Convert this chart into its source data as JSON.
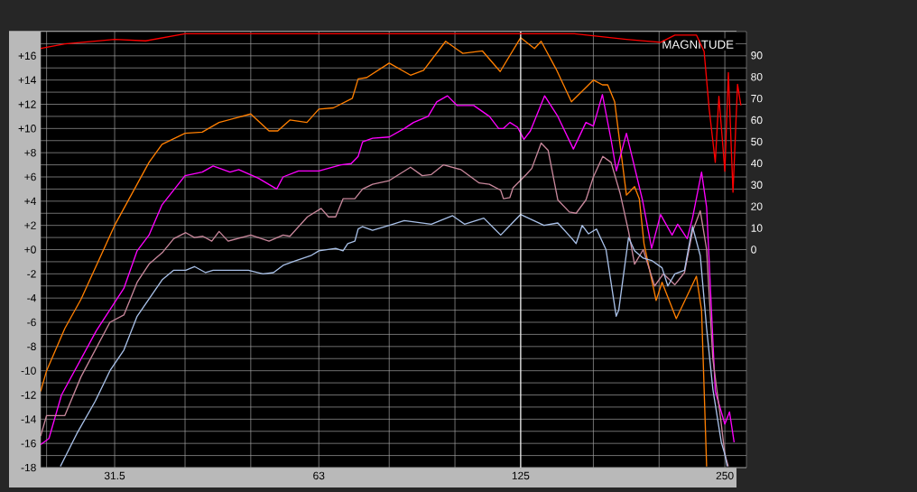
{
  "chart_data": {
    "type": "line",
    "log": "x",
    "grid": true,
    "annotations": [
      "MAGNITUDE"
    ],
    "xlim": [
      24.5,
      269
    ],
    "ylim": [
      -18,
      18
    ],
    "y2lim": [
      -101,
      101
    ],
    "xticks": [
      {
        "value": 25,
        "label": null
      },
      31.5,
      {
        "value": 40,
        "label": null
      },
      {
        "value": 50,
        "label": null
      },
      63,
      {
        "value": 80,
        "label": null
      },
      {
        "value": 100,
        "label": null
      },
      125,
      {
        "value": 160,
        "label": null
      },
      {
        "value": 200,
        "label": null
      },
      250
    ],
    "yticks": [
      -18,
      {
        "value": -17,
        "label": null
      },
      -16,
      {
        "value": -15,
        "label": null
      },
      -14,
      {
        "value": -13,
        "label": null
      },
      -12,
      {
        "value": -11,
        "label": null
      },
      -10,
      {
        "value": -9,
        "label": null
      },
      -8,
      {
        "value": -7,
        "label": null
      },
      -6,
      {
        "value": -5,
        "label": null
      },
      -4,
      {
        "value": -3,
        "label": null
      },
      -2,
      {
        "value": -1,
        "label": null
      },
      {
        "value": 0,
        "label": "+0"
      },
      {
        "value": 1,
        "label": null
      },
      {
        "value": 2,
        "label": "+2"
      },
      {
        "value": 3,
        "label": null
      },
      {
        "value": 4,
        "label": "+4"
      },
      {
        "value": 5,
        "label": null
      },
      {
        "value": 6,
        "label": "+6"
      },
      {
        "value": 7,
        "label": null
      },
      {
        "value": 8,
        "label": "+8"
      },
      {
        "value": 9,
        "label": null
      },
      {
        "value": 10,
        "label": "+10"
      },
      {
        "value": 11,
        "label": null
      },
      {
        "value": 12,
        "label": "+12"
      },
      {
        "value": 13,
        "label": null
      },
      {
        "value": 14,
        "label": "+14"
      },
      {
        "value": 15,
        "label": null
      },
      {
        "value": 16,
        "label": "+16"
      },
      {
        "value": 17,
        "label": null
      }
    ],
    "y2ticks": [
      0,
      10,
      20,
      30,
      40,
      50,
      60,
      70,
      80,
      90
    ],
    "ref_lines": [
      {
        "axis": "x",
        "value": 125,
        "color": "#ffffff"
      }
    ],
    "series": [
      {
        "color": "#ff7f00",
        "x": [
          24.5,
          25,
          26.6,
          28.1,
          31.5,
          35.4,
          37.0,
          40,
          42.4,
          44.9,
          50,
          53.2,
          54.8,
          57.1,
          60.5,
          63,
          66.2,
          70.6,
          72,
          74.1,
          80,
          86.0,
          89.9,
          96.9,
          102.7,
          109.8,
          116.6,
          125,
          131,
          134,
          141,
          148.5,
          160,
          165,
          168,
          172,
          179,
          184,
          187,
          190,
          198,
          202,
          212,
          227,
          231,
          235
        ],
        "values": [
          -11.7,
          -10.0,
          -6.5,
          -4.1,
          2.0,
          7.2,
          8.7,
          9.6,
          9.7,
          10.5,
          11.2,
          9.8,
          9.8,
          10.7,
          10.5,
          11.6,
          11.7,
          12.5,
          14.1,
          14.2,
          15.4,
          14.4,
          14.8,
          17.2,
          16.2,
          16.4,
          14.7,
          17.5,
          16.6,
          17.2,
          14.9,
          12.2,
          14.0,
          13.6,
          13.6,
          12.2,
          4.5,
          5.2,
          4.2,
          0.5,
          -4.2,
          -2.7,
          -5.7,
          -2.2,
          -5.0,
          -17.9
        ]
      },
      {
        "color": "#ff00ff",
        "x": [
          24.5,
          25.2,
          26.3,
          29.6,
          32.5,
          34.0,
          35.4,
          37.0,
          40,
          42.4,
          44,
          46.6,
          48,
          51.3,
          54.6,
          55.8,
          58.8,
          63,
          67.9,
          70.3,
          72.0,
          73.1,
          75.6,
          80,
          84.2,
          86.9,
          91.3,
          94.0,
          97.5,
          100.7,
          106.6,
          112.4,
          116,
          117.9,
          120.5,
          123.7,
          126.4,
          129.2,
          135.6,
          141.8,
          149.5,
          156,
          160,
          165,
          170,
          173,
          179,
          189,
          195,
          201,
          209,
          213,
          220,
          224,
          231,
          235,
          242,
          250,
          254,
          258
        ],
        "values": [
          -16.1,
          -15.6,
          -12.0,
          -6.7,
          -3.2,
          -0.1,
          1.2,
          3.7,
          6.1,
          6.4,
          6.9,
          6.4,
          6.6,
          5.9,
          5.0,
          6.0,
          6.5,
          6.5,
          7.0,
          7.1,
          7.7,
          8.9,
          9.2,
          9.3,
          10.0,
          10.5,
          11.0,
          12.2,
          12.7,
          11.9,
          11.9,
          11.0,
          10.0,
          10.0,
          10.5,
          10.1,
          9.1,
          9.8,
          12.7,
          11.0,
          8.3,
          10.5,
          10.2,
          12.8,
          9.0,
          6.5,
          9.6,
          4.1,
          0.1,
          2.9,
          1.2,
          2.1,
          0.9,
          2.6,
          6.4,
          3.5,
          -11.7,
          -14.4,
          -13.4,
          -15.9
        ]
      },
      {
        "color": "#c8879b",
        "x": [
          24.5,
          25,
          26.6,
          28.1,
          31.0,
          32.5,
          34.0,
          35.4,
          37.1,
          38.5,
          40.1,
          41.3,
          42.5,
          43.8,
          44.9,
          46.3,
          50.0,
          53.2,
          55.8,
          57.1,
          60.6,
          63.5,
          65.1,
          66.7,
          68.4,
          71.2,
          73.1,
          75.6,
          80,
          86,
          89.5,
          92.3,
          96.2,
          102.1,
          108.6,
          112.4,
          116.8,
          117.9,
          120.5,
          121.8,
          127.4,
          129.8,
          134,
          137.2,
          141.8,
          147.5,
          150.9,
          156,
          160,
          165.2,
          169.9,
          175.3,
          180.3,
          184,
          189.5,
          197,
          202.9,
          211,
          218,
          224,
          230,
          235,
          240,
          247,
          250,
          253
        ],
        "values": [
          -15.4,
          -13.7,
          -13.7,
          -10.5,
          -6.0,
          -5.4,
          -2.7,
          -1.2,
          -0.2,
          0.9,
          1.4,
          1.0,
          1.1,
          0.7,
          1.5,
          0.7,
          1.2,
          0.7,
          1.2,
          1.1,
          2.7,
          3.4,
          2.7,
          2.7,
          4.2,
          4.2,
          5.0,
          5.4,
          5.7,
          6.8,
          6.1,
          6.2,
          7.0,
          6.6,
          5.5,
          5.4,
          4.9,
          4.2,
          4.3,
          5.1,
          6.2,
          6.7,
          8.8,
          8.2,
          4.1,
          3.1,
          3.0,
          4.1,
          6.0,
          7.7,
          7.2,
          4.6,
          1.5,
          -1.2,
          0.0,
          -3.0,
          -2.0,
          -2.9,
          -1.9,
          1.5,
          3.2,
          0.0,
          -9.0,
          -14.4,
          -16.9,
          -17.9
        ]
      },
      {
        "color": "#a8c0e8",
        "x": [
          26.2,
          27.7,
          29.5,
          31.0,
          32.5,
          34.0,
          37.0,
          38.5,
          40.1,
          41.3,
          42.9,
          44,
          49.6,
          52.1,
          54,
          55.8,
          57.7,
          61.3,
          63,
          66.7,
          68.4,
          69.5,
          71.2,
          72.0,
          73.1,
          75.6,
          80,
          84.2,
          92.3,
          99.2,
          103.3,
          110.3,
          116.8,
          122.5,
          125,
          135.3,
          141.8,
          148.3,
          150.9,
          154,
          157.4,
          161.7,
          167,
          172.9,
          174.4,
          180.3,
          184,
          189.5,
          195,
          202,
          206,
          211,
          218,
          224,
          230,
          235,
          240,
          247,
          250,
          252
        ],
        "values": [
          -17.9,
          -15.2,
          -12.5,
          -10.0,
          -8.3,
          -5.5,
          -2.5,
          -1.7,
          -1.7,
          -1.4,
          -1.9,
          -1.7,
          -1.7,
          -2.0,
          -1.9,
          -1.3,
          -1.0,
          -0.5,
          -0.1,
          0.1,
          -0.1,
          0.5,
          0.7,
          1.7,
          1.9,
          1.6,
          2.0,
          2.4,
          2.1,
          2.8,
          2.1,
          2.6,
          1.2,
          2.4,
          2.9,
          2.0,
          2.2,
          1.0,
          0.5,
          2.0,
          1.3,
          1.7,
          0.0,
          -5.5,
          -5.0,
          1.0,
          -0.1,
          -0.7,
          -0.9,
          -1.5,
          -3.0,
          -2.0,
          -1.7,
          1.9,
          -0.5,
          -6.5,
          -11.5,
          -15.9,
          -16.9,
          -17.9
        ]
      },
      {
        "color": "#ff0000",
        "axis": "y2",
        "x": [
          24.5,
          26.6,
          31.5,
          35.0,
          40,
          60,
          100,
          150,
          179,
          201,
          211,
          227,
          233,
          237,
          242,
          245,
          250,
          253,
          257,
          261,
          264
        ],
        "values": [
          93.2,
          95.3,
          97.4,
          96.7,
          100,
          100,
          100,
          100,
          97.4,
          96.0,
          99.4,
          99.4,
          91.8,
          65.4,
          40.4,
          71,
          36.3,
          82,
          26.6,
          76.6,
          66.8
        ]
      }
    ]
  }
}
